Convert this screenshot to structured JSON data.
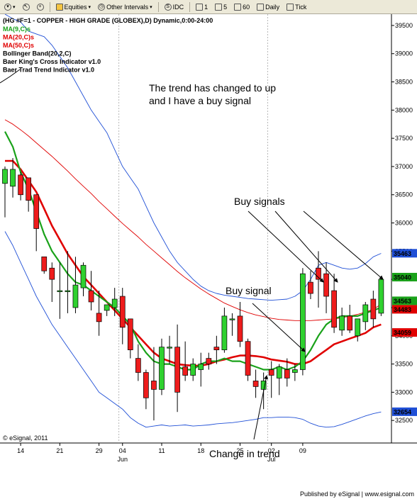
{
  "toolbar": {
    "items": [
      {
        "name": "symbol-dropdown",
        "label": "",
        "icon": "chevron-down-icon"
      },
      {
        "name": "cursor-tool",
        "label": "",
        "icon": "cursor-icon"
      },
      {
        "name": "add-button",
        "label": "",
        "icon": "plus-icon"
      },
      {
        "name": "equities-dropdown",
        "label": "Equities",
        "icon": "folder-icon"
      },
      {
        "name": "other-intervals-dropdown",
        "label": "Other Intervals",
        "icon": "clock-icon"
      },
      {
        "name": "idc-button",
        "label": "IDC",
        "icon": "s-circle-icon"
      },
      {
        "name": "interval-1-button",
        "label": "1",
        "icon": "square-icon"
      },
      {
        "name": "interval-5-button",
        "label": "5",
        "icon": "square-icon"
      },
      {
        "name": "interval-60-button",
        "label": "60",
        "icon": "square-icon"
      },
      {
        "name": "daily-button",
        "label": "Daily",
        "icon": "square-icon"
      },
      {
        "name": "tick-button",
        "label": "Tick",
        "icon": "square-icon"
      }
    ]
  },
  "chart_data": {
    "type": "candlestick",
    "title": "(HG #F=1 - COPPER - HIGH GRADE (GLOBEX),D) Dynamic,0:00-24:00",
    "indicators": [
      {
        "label": "MA(9,C)s",
        "color": "#1aa21a"
      },
      {
        "label": "MA(20,C)s",
        "color": "#e00000"
      },
      {
        "label": "MA(50,C)s",
        "color": "#e00000"
      },
      {
        "label": "Bollinger Band(20,2,C)",
        "color": "#000000"
      },
      {
        "label": "Baer King's Cross Indicator v1.0",
        "color": "#000000"
      },
      {
        "label": "Baer Trad Trend Indicator v1.0",
        "color": "#000000"
      }
    ],
    "ylim": [
      32100,
      39700
    ],
    "yticks": [
      32500,
      33000,
      33500,
      34000,
      34500,
      35000,
      35500,
      36000,
      36500,
      37000,
      37500,
      38000,
      38500,
      39000,
      39500
    ],
    "xticks": [
      {
        "i": 2,
        "label": "14"
      },
      {
        "i": 7,
        "label": "21"
      },
      {
        "i": 12,
        "label": "29"
      },
      {
        "i": 15,
        "label": "04"
      },
      {
        "i": 20,
        "label": "11"
      },
      {
        "i": 25,
        "label": "18"
      },
      {
        "i": 30,
        "label": "25"
      },
      {
        "i": 34,
        "label": "02"
      },
      {
        "i": 38,
        "label": "09"
      }
    ],
    "months": [
      {
        "i": 15,
        "label": "Jun"
      },
      {
        "i": 34,
        "label": "Jul"
      }
    ],
    "candles": [
      {
        "o": 36700,
        "h": 37000,
        "l": 36100,
        "c": 36950
      },
      {
        "o": 36650,
        "h": 37150,
        "l": 36450,
        "c": 36950
      },
      {
        "o": 36850,
        "h": 36900,
        "l": 36400,
        "c": 36500
      },
      {
        "o": 36800,
        "h": 36800,
        "l": 36200,
        "c": 36400
      },
      {
        "o": 36500,
        "h": 36500,
        "l": 35500,
        "c": 35900
      },
      {
        "o": 35400,
        "h": 35400,
        "l": 35100,
        "c": 35150
      },
      {
        "o": 35200,
        "h": 35300,
        "l": 34600,
        "c": 35000
      },
      {
        "o": 34800,
        "h": 35300,
        "l": 34300,
        "c": 34800
      },
      {
        "o": 34800,
        "h": 35500,
        "l": 34400,
        "c": 34800
      },
      {
        "o": 34500,
        "h": 35400,
        "l": 34400,
        "c": 34900
      },
      {
        "o": 34850,
        "h": 35300,
        "l": 34700,
        "c": 35250
      },
      {
        "o": 34800,
        "h": 35150,
        "l": 34450,
        "c": 34600
      },
      {
        "o": 34400,
        "h": 34800,
        "l": 34000,
        "c": 34250
      },
      {
        "o": 34450,
        "h": 34550,
        "l": 34350,
        "c": 34550
      },
      {
        "o": 34500,
        "h": 34850,
        "l": 34350,
        "c": 34650
      },
      {
        "o": 34700,
        "h": 34850,
        "l": 33850,
        "c": 34150
      },
      {
        "o": 34300,
        "h": 34300,
        "l": 33600,
        "c": 33750
      },
      {
        "o": 33600,
        "h": 33850,
        "l": 33200,
        "c": 33350
      },
      {
        "o": 33350,
        "h": 33400,
        "l": 32700,
        "c": 32900
      },
      {
        "o": 33200,
        "h": 33800,
        "l": 32500,
        "c": 33050
      },
      {
        "o": 33050,
        "h": 33950,
        "l": 32950,
        "c": 33800
      },
      {
        "o": 33800,
        "h": 34000,
        "l": 33500,
        "c": 33800
      },
      {
        "o": 33800,
        "h": 34200,
        "l": 32650,
        "c": 33000
      },
      {
        "o": 33450,
        "h": 33900,
        "l": 33200,
        "c": 33300
      },
      {
        "o": 33300,
        "h": 33600,
        "l": 33200,
        "c": 33500
      },
      {
        "o": 33400,
        "h": 33700,
        "l": 33100,
        "c": 33500
      },
      {
        "o": 33600,
        "h": 33700,
        "l": 33400,
        "c": 33500
      },
      {
        "o": 33800,
        "h": 34000,
        "l": 33500,
        "c": 33750
      },
      {
        "o": 33750,
        "h": 34500,
        "l": 33700,
        "c": 34350
      },
      {
        "o": 34300,
        "h": 34400,
        "l": 34000,
        "c": 34300
      },
      {
        "o": 34350,
        "h": 34600,
        "l": 33800,
        "c": 33900
      },
      {
        "o": 33900,
        "h": 33950,
        "l": 33200,
        "c": 33300
      },
      {
        "o": 33200,
        "h": 33400,
        "l": 32900,
        "c": 33100
      },
      {
        "o": 33050,
        "h": 33350,
        "l": 32700,
        "c": 33200
      },
      {
        "o": 33400,
        "h": 33550,
        "l": 32900,
        "c": 33300
      },
      {
        "o": 33250,
        "h": 33500,
        "l": 32950,
        "c": 33450
      },
      {
        "o": 33400,
        "h": 33600,
        "l": 33100,
        "c": 33250
      },
      {
        "o": 33350,
        "h": 33500,
        "l": 33200,
        "c": 33400
      },
      {
        "o": 33400,
        "h": 35200,
        "l": 33300,
        "c": 35100
      },
      {
        "o": 34950,
        "h": 35150,
        "l": 34650,
        "c": 34750
      },
      {
        "o": 35200,
        "h": 35500,
        "l": 34500,
        "c": 35000
      },
      {
        "o": 35100,
        "h": 35300,
        "l": 34400,
        "c": 34700
      },
      {
        "o": 34800,
        "h": 35100,
        "l": 34050,
        "c": 34150
      },
      {
        "o": 34100,
        "h": 34500,
        "l": 34000,
        "c": 34350
      },
      {
        "o": 34350,
        "h": 34550,
        "l": 34050,
        "c": 34100
      },
      {
        "o": 34000,
        "h": 34300,
        "l": 33900,
        "c": 34300
      },
      {
        "o": 34250,
        "h": 34600,
        "l": 34100,
        "c": 34550
      },
      {
        "o": 34650,
        "h": 34800,
        "l": 34150,
        "c": 34300
      },
      {
        "o": 34400,
        "h": 35050,
        "l": 34350,
        "c": 35000
      }
    ],
    "ma9": [
      37620,
      37350,
      36900,
      36600,
      36200,
      35800,
      35500,
      35300,
      35100,
      34950,
      34900,
      34800,
      34700,
      34600,
      34500,
      34350,
      34200,
      33900,
      33700,
      33550,
      33500,
      33500,
      33450,
      33400,
      33400,
      33500,
      33550,
      33550,
      33600,
      33550,
      33550,
      33500,
      33450,
      33400,
      33400,
      33450,
      33400,
      33450,
      33550,
      33750,
      34000,
      34200,
      34300,
      34350,
      34350,
      34350,
      34400,
      34450,
      34500
    ],
    "ma20": [
      37100,
      37100,
      36950,
      36750,
      36550,
      36250,
      35950,
      35700,
      35450,
      35250,
      35050,
      34900,
      34750,
      34600,
      34450,
      34300,
      34150,
      34000,
      33850,
      33700,
      33600,
      33550,
      33500,
      33480,
      33470,
      33470,
      33500,
      33550,
      33580,
      33620,
      33650,
      33650,
      33640,
      33620,
      33580,
      33560,
      33540,
      33500,
      33500,
      33550,
      33650,
      33750,
      33850,
      33900,
      33950,
      34000,
      34050,
      34150,
      34200
    ],
    "ma50": [
      37830,
      37750,
      37650,
      37540,
      37420,
      37300,
      37180,
      37050,
      36920,
      36780,
      36650,
      36520,
      36380,
      36250,
      36120,
      35990,
      35870,
      35750,
      35620,
      35500,
      35380,
      35260,
      35140,
      35030,
      34930,
      34830,
      34740,
      34660,
      34580,
      34520,
      34460,
      34410,
      34370,
      34340,
      34310,
      34290,
      34280,
      34270,
      34270,
      34270,
      34280,
      34290,
      34300,
      34320,
      34350,
      34380,
      34420,
      34470,
      34560
    ],
    "bb_upper": [
      39700,
      39620,
      39560,
      39400,
      39350,
      39300,
      39150,
      38950,
      38750,
      38500,
      38250,
      38000,
      37800,
      37600,
      37300,
      37000,
      36800,
      36600,
      36300,
      36000,
      35750,
      35500,
      35300,
      35150,
      35000,
      34880,
      34800,
      34750,
      34720,
      34700,
      34680,
      34660,
      34650,
      34640,
      34630,
      34640,
      34650,
      34700,
      34800,
      35000,
      35250,
      35300,
      35250,
      35200,
      35180,
      35200,
      35280,
      35400,
      35460
    ],
    "bb_lower": [
      35850,
      35600,
      35300,
      35000,
      34700,
      34450,
      34200,
      34000,
      33800,
      33600,
      33400,
      33200,
      33000,
      32900,
      32800,
      32700,
      32550,
      32450,
      32380,
      32400,
      32420,
      32400,
      32410,
      32420,
      32400,
      32410,
      32420,
      32440,
      32450,
      32460,
      32480,
      32500,
      32520,
      32550,
      32550,
      32560,
      32560,
      32550,
      32520,
      32450,
      32400,
      32380,
      32390,
      32430,
      32480,
      32530,
      32580,
      32620,
      32650
    ],
    "price_labels": [
      {
        "value": "35463",
        "y": 35463,
        "color": "#1f4fd6"
      },
      {
        "value": "35040",
        "y": 35040,
        "color": "#1aa21a"
      },
      {
        "value": "34563",
        "y": 34620,
        "color": "#1aa21a"
      },
      {
        "value": "34483",
        "y": 34470,
        "color": "#e00000"
      },
      {
        "value": "34059",
        "y": 34059,
        "color": "#e00000"
      },
      {
        "value": "32654",
        "y": 32654,
        "color": "#1f4fd6"
      }
    ],
    "annotations": {
      "trend_text": [
        "The trend has changed to up",
        "and I have a buy signal"
      ],
      "buy_signals": "Buy signals",
      "buy_signal": "Buy signal",
      "change_in_trend": "Change in trend"
    },
    "copyright": "© eSignal, 2011"
  },
  "footer": {
    "publisher": "Published by eSignal",
    "separator": "|",
    "url": "www.esignal.com"
  }
}
